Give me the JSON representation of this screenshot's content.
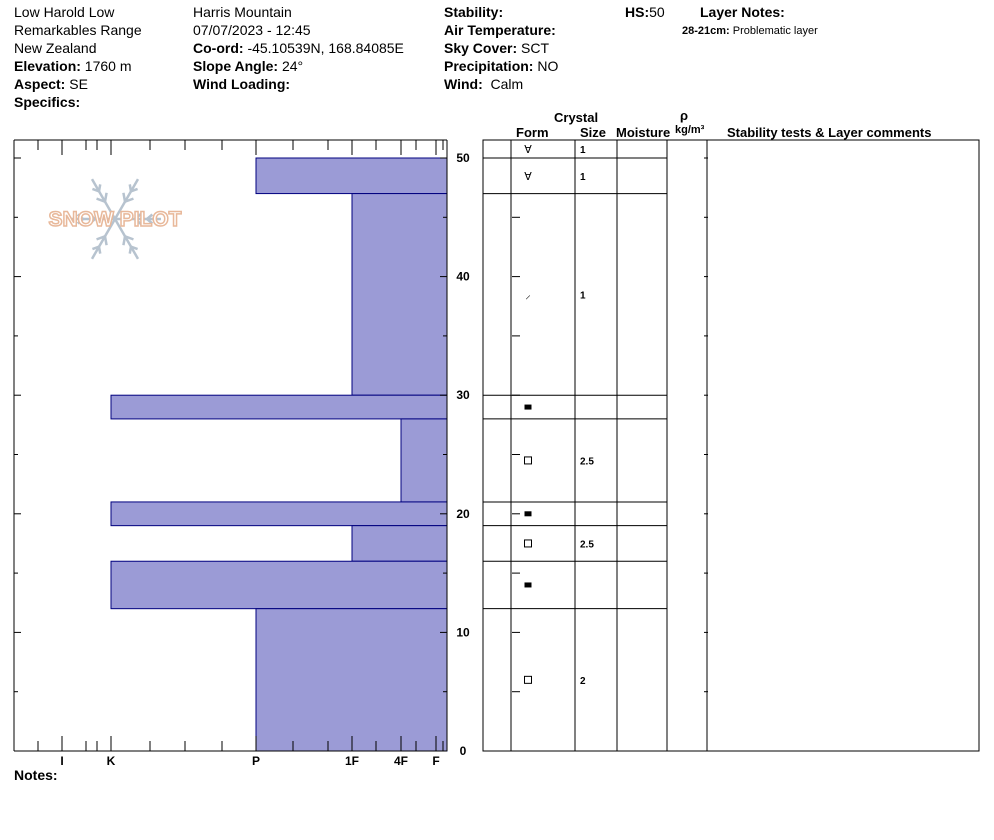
{
  "header": {
    "col1": [
      "Low Harold Low",
      "Remarkables Range",
      "New Zealand"
    ],
    "elevation_label": "Elevation:",
    "elevation_value": "1760 m",
    "aspect_label": "Aspect:",
    "aspect_value": "SE",
    "specifics_label": "Specifics:",
    "location": "Harris Mountain",
    "datetime": "07/07/2023 - 12:45",
    "coord_label": "Co-ord:",
    "coord_value": "-45.10539N, 168.84085E",
    "slope_label": "Slope Angle:",
    "slope_value": "24°",
    "wind_loading_label": "Wind Loading:",
    "stability_label": "Stability:",
    "air_temp_label": "Air Temperature:",
    "sky_label": "Sky Cover:",
    "sky_value": "SCT",
    "precip_label": "Precipitation:",
    "precip_value": "NO",
    "wind_label": "Wind:",
    "wind_value": "Calm",
    "hs_label": "HS:",
    "hs_value": "50",
    "layer_notes_label": "Layer Notes:",
    "layer_note_range": "28-21cm:",
    "layer_note_text": "Problematic layer"
  },
  "logo_text": "SNOW PILOT",
  "notes_label": "Notes:",
  "columns": {
    "crystal": "Crystal",
    "form": "Form",
    "size": "Size",
    "moisture": "Moisture",
    "rho": "ρ",
    "density_unit": "kg/m³",
    "comments": "Stability tests & Layer comments"
  },
  "colors": {
    "fill": "#9b9bd6",
    "stroke": "#00007f"
  },
  "chart_data": {
    "type": "bar",
    "ylim": [
      0,
      52
    ],
    "y_ticks": [
      "0",
      "10",
      "20",
      "30",
      "40",
      "50"
    ],
    "hardness_ticks": [
      "I",
      "K",
      "P",
      "1F",
      "4F",
      "F"
    ],
    "layers": [
      {
        "top": 50,
        "bottom": 47,
        "hardness": "P",
        "form": "∀",
        "size": "1"
      },
      {
        "top": 47,
        "bottom": 30,
        "hardness": "1F",
        "form": "⟋",
        "size": "1"
      },
      {
        "top": 30,
        "bottom": 28,
        "hardness": "K",
        "form": "■",
        "size": ""
      },
      {
        "top": 28,
        "bottom": 21,
        "hardness": "4F",
        "form": "□",
        "size": "2.5"
      },
      {
        "top": 21,
        "bottom": 19,
        "hardness": "K",
        "form": "■",
        "size": ""
      },
      {
        "top": 19,
        "bottom": 16,
        "hardness": "1F",
        "form": "□",
        "size": "2.5"
      },
      {
        "top": 16,
        "bottom": 12,
        "hardness": "K",
        "form": "■",
        "size": ""
      },
      {
        "top": 12,
        "bottom": 0,
        "hardness": "P",
        "form": "□",
        "size": "2"
      }
    ],
    "surface_form": "∀",
    "surface_size": "1"
  }
}
